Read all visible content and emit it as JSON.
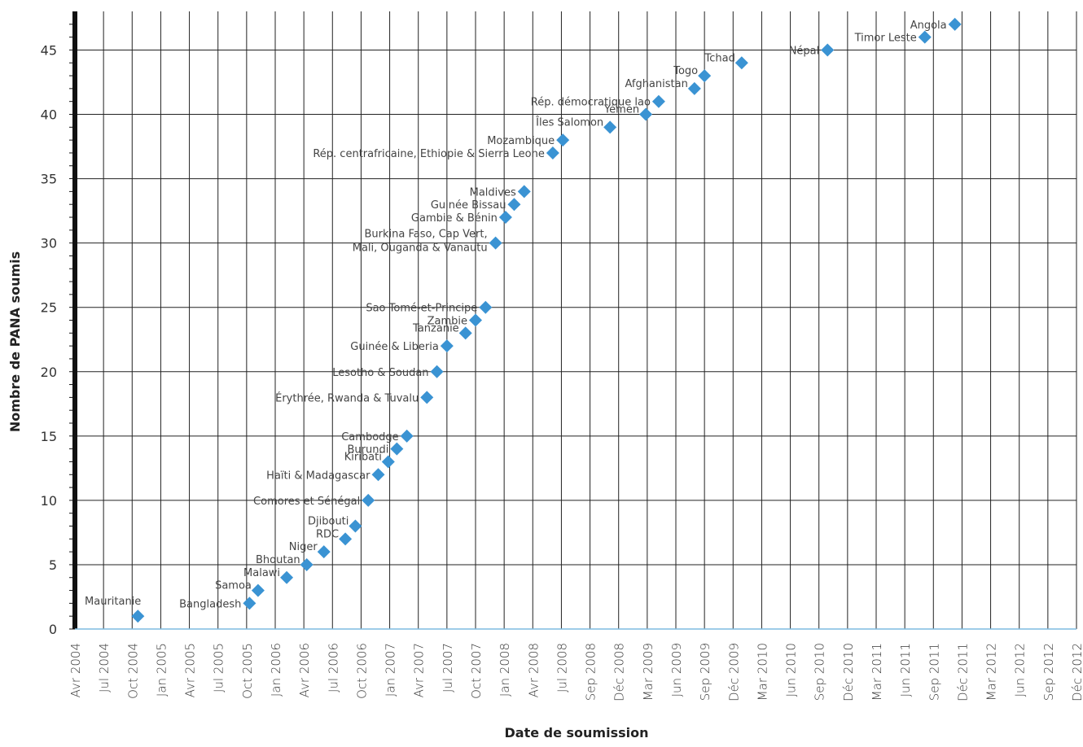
{
  "chart_data": {
    "type": "scatter",
    "xlabel": "Date de soumission",
    "ylabel": "Nombre de PANA soumis",
    "ylim": [
      0,
      48
    ],
    "yticks": [
      0,
      5,
      10,
      15,
      20,
      25,
      30,
      35,
      40,
      45
    ],
    "grid": true,
    "xcategories": [
      "Avr 2004",
      "Jul 2004",
      "Oct 2004",
      "Jan 2005",
      "Avr 2005",
      "Jul 2005",
      "Oct 2005",
      "Jan 2006",
      "Avr 2006",
      "Jul 2006",
      "Oct 2006",
      "Jan 2007",
      "Avr 2007",
      "Jul 2007",
      "Oct 2007",
      "Jan 2008",
      "Avr 2008",
      "Jul 2008",
      "Sep 2008",
      "Déc 2008",
      "Mar 2009",
      "Jun 2009",
      "Sep 2009",
      "Déc 2009",
      "Mar 2010",
      "Jun 2010",
      "Sep 2010",
      "Déc 2010",
      "Mar 2011",
      "Jun 2011",
      "Sep 2011",
      "Déc 2011",
      "Mar 2012",
      "Jun 2012",
      "Sep 2012",
      "Déc 2012"
    ],
    "marker_color": "#3A93D3",
    "points": [
      {
        "x": 2.2,
        "y": 1,
        "label": "Mauritanie",
        "pos": "above-left"
      },
      {
        "x": 6.1,
        "y": 2,
        "label": "Bangladesh",
        "pos": "left"
      },
      {
        "x": 6.4,
        "y": 3,
        "label": "Samoa",
        "pos": "left-up"
      },
      {
        "x": 7.4,
        "y": 4,
        "label": "Malawi",
        "pos": "left-up"
      },
      {
        "x": 8.1,
        "y": 5,
        "label": "Bhoutan",
        "pos": "left-up"
      },
      {
        "x": 8.7,
        "y": 6,
        "label": "Niger",
        "pos": "left-up"
      },
      {
        "x": 9.45,
        "y": 7,
        "label": "RDC",
        "pos": "left-up"
      },
      {
        "x": 9.8,
        "y": 8,
        "label": "Djibouti",
        "pos": "left-up"
      },
      {
        "x": 10.25,
        "y": 10,
        "label": "Comores et Sénégal",
        "pos": "left"
      },
      {
        "x": 10.6,
        "y": 12,
        "label": "Haïti & Madagascar",
        "pos": "left"
      },
      {
        "x": 10.95,
        "y": 13,
        "label": "Kiribati",
        "pos": "left-up"
      },
      {
        "x": 11.25,
        "y": 14,
        "label": "Burundi",
        "pos": "left"
      },
      {
        "x": 11.6,
        "y": 15,
        "label": "Cambodge",
        "pos": "left"
      },
      {
        "x": 12.3,
        "y": 18,
        "label": "Érythrée, Rwanda & Tuvalu",
        "pos": "left"
      },
      {
        "x": 12.65,
        "y": 20,
        "label": "Lesotho & Soudan",
        "pos": "left"
      },
      {
        "x": 13.0,
        "y": 22,
        "label": "Guinée & Liberia",
        "pos": "left"
      },
      {
        "x": 13.65,
        "y": 23,
        "label": "Tanzanie",
        "pos": "left-up"
      },
      {
        "x": 14.0,
        "y": 24,
        "label": "Zambie",
        "pos": "left"
      },
      {
        "x": 14.35,
        "y": 25,
        "label": "Sao Tomé-et-Principe",
        "pos": "left"
      },
      {
        "x": 14.7,
        "y": 30,
        "label": "Burkina Faso, Cap Vert,",
        "label2": "Mali, Ouganda & Vanautu",
        "pos": "left-2line"
      },
      {
        "x": 15.05,
        "y": 32,
        "label": "Gambie & Bénin",
        "pos": "left"
      },
      {
        "x": 15.35,
        "y": 33,
        "label": "Guinée Bissau",
        "pos": "left"
      },
      {
        "x": 15.7,
        "y": 34,
        "label": "Maldives",
        "pos": "left"
      },
      {
        "x": 16.7,
        "y": 37,
        "label": "Rép. centrafricaine, Ethiopie & Sierra Leone",
        "pos": "left"
      },
      {
        "x": 17.05,
        "y": 38,
        "label": "Mozambique",
        "pos": "left"
      },
      {
        "x": 18.7,
        "y": 39,
        "label": "Îles Salomon",
        "pos": "left-up"
      },
      {
        "x": 19.95,
        "y": 40,
        "label": "Yémen",
        "pos": "left-up"
      },
      {
        "x": 20.4,
        "y": 41,
        "label": "Rép. démocratique lao",
        "pos": "left"
      },
      {
        "x": 21.65,
        "y": 42,
        "label": "Afghanistan",
        "pos": "left-up"
      },
      {
        "x": 22.0,
        "y": 43,
        "label": "Togo",
        "pos": "left-up"
      },
      {
        "x": 23.3,
        "y": 44,
        "label": "Tchad",
        "pos": "left-up"
      },
      {
        "x": 26.3,
        "y": 45,
        "label": "Népal",
        "pos": "left"
      },
      {
        "x": 29.7,
        "y": 46,
        "label": "Timor Leste",
        "pos": "left"
      },
      {
        "x": 30.75,
        "y": 47,
        "label": "Angola",
        "pos": "left"
      }
    ]
  }
}
